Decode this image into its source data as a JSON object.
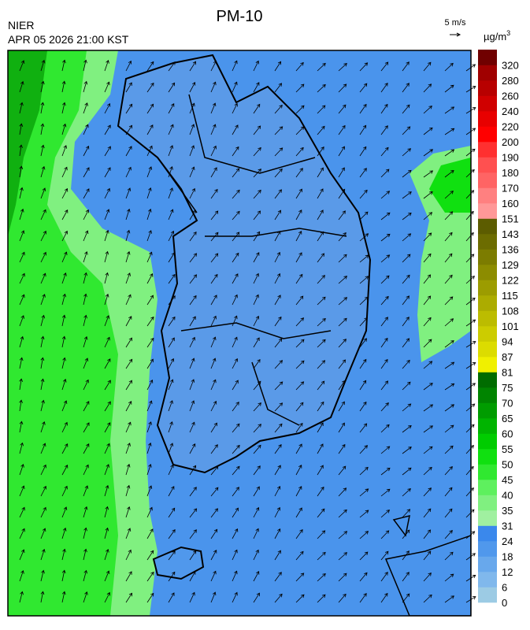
{
  "header": {
    "title": "PM-10",
    "agency": "NIER",
    "timestamp": "APR 05 2026 21:00 KST"
  },
  "wind_legend": {
    "label": "5 m/s"
  },
  "colorbar": {
    "unit_base": "µg/m",
    "unit_sup": "3",
    "ticks": [
      0,
      6,
      12,
      18,
      24,
      31,
      35,
      40,
      45,
      50,
      55,
      60,
      65,
      70,
      75,
      81,
      87,
      94,
      101,
      108,
      115,
      122,
      129,
      136,
      143,
      151,
      160,
      170,
      180,
      190,
      200,
      220,
      240,
      260,
      280,
      320
    ],
    "colors": [
      "#9ccbe4",
      "#80b8ec",
      "#68a8ec",
      "#5098ec",
      "#3a88ec",
      "#a0f0a0",
      "#80f080",
      "#5ef05e",
      "#30e830",
      "#10e010",
      "#00cc00",
      "#00b400",
      "#009c00",
      "#008400",
      "#006c00",
      "#f0f000",
      "#dcdc00",
      "#cccc00",
      "#bcbc00",
      "#acac00",
      "#9c9c00",
      "#8c8c00",
      "#7c7c00",
      "#6c6c00",
      "#5c5c00",
      "#ff9898",
      "#ff8080",
      "#ff6464",
      "#ff5050",
      "#ff3030",
      "#ff0000",
      "#e80000",
      "#d00000",
      "#b80000",
      "#a00000",
      "#700000"
    ]
  }
}
